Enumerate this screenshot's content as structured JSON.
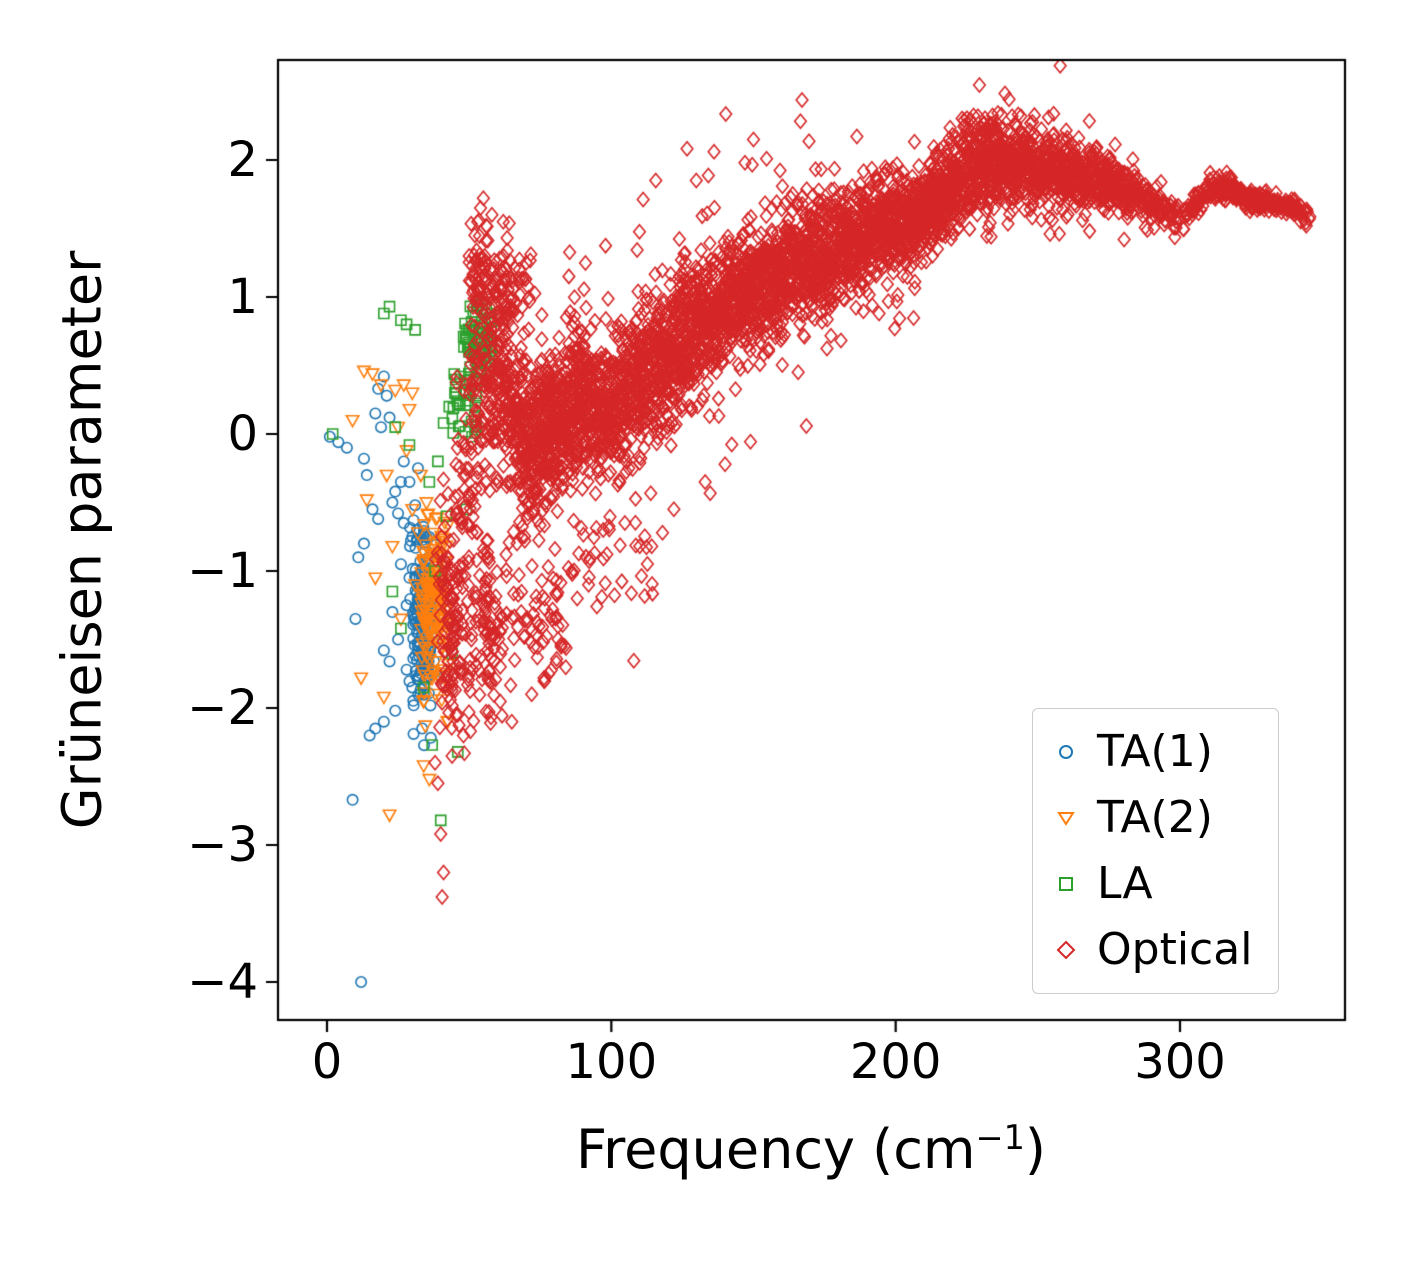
{
  "figure": {
    "background": "#ffffff",
    "axis_color": "#000000"
  },
  "chart_data": {
    "type": "scatter",
    "title": "",
    "xlabel": "Frequency (cm⁻¹)",
    "xlabel_parts": {
      "base": "Frequency (cm",
      "sup": "−1",
      "close": ")"
    },
    "ylabel": "Grüneisen parameter",
    "xlim": [
      -17,
      358
    ],
    "ylim": [
      -4.28,
      2.73
    ],
    "grid": false,
    "xticks": {
      "values": [
        0,
        100,
        200,
        300
      ],
      "labels": [
        "0",
        "100",
        "200",
        "300"
      ]
    },
    "yticks": {
      "values": [
        2,
        1,
        0,
        -1,
        -2,
        -3,
        -4
      ],
      "labels": [
        "2",
        "1",
        "0",
        "−1",
        "−2",
        "−3",
        "−4"
      ]
    },
    "legend": {
      "position": "lower right",
      "labels": [
        "TA(1)",
        "TA(2)",
        "LA",
        "Optical"
      ]
    },
    "series": [
      {
        "name": "TA(1)",
        "marker": "circle",
        "color": "#1f77b4",
        "points": [
          [
            1,
            -0.02
          ],
          [
            4,
            -0.06
          ],
          [
            7,
            -0.1
          ],
          [
            9,
            -2.67
          ],
          [
            12,
            -4.0
          ],
          [
            10,
            -1.35
          ],
          [
            11,
            -0.9
          ],
          [
            13,
            -0.8
          ],
          [
            15,
            -2.2
          ],
          [
            17,
            -2.15
          ],
          [
            18,
            0.33
          ],
          [
            21,
            0.28
          ],
          [
            16,
            -0.55
          ],
          [
            18,
            -0.62
          ],
          [
            20,
            -1.58
          ],
          [
            22,
            -1.66
          ],
          [
            23,
            -0.5
          ],
          [
            24,
            -0.42
          ],
          [
            25,
            -0.58
          ],
          [
            26,
            -0.35
          ],
          [
            27,
            -0.65
          ],
          [
            28,
            -1.25
          ],
          [
            29,
            -1.05
          ],
          [
            20,
            -2.1
          ],
          [
            24,
            -2.02
          ],
          [
            14,
            -0.3
          ],
          [
            19,
            0.05
          ],
          [
            22,
            0.12
          ],
          [
            26,
            -0.95
          ],
          [
            30,
            -0.75
          ],
          [
            31,
            -0.52
          ],
          [
            25,
            -1.5
          ],
          [
            28,
            -1.72
          ],
          [
            23,
            -1.3
          ],
          [
            20,
            0.42
          ],
          [
            17,
            0.15
          ],
          [
            13,
            -0.18
          ],
          [
            27,
            -0.2
          ],
          [
            29,
            -0.35
          ],
          [
            31,
            -1.35
          ],
          [
            30,
            -1.85
          ],
          [
            32,
            -0.25
          ]
        ],
        "clusters": [
          {
            "x": [
              29,
              38
            ],
            "y": [
              -2.35,
              -0.3
            ],
            "n": 120
          },
          {
            "x": [
              31,
              36
            ],
            "y": [
              -1.95,
              -0.85
            ],
            "n": 70
          }
        ]
      },
      {
        "name": "TA(2)",
        "marker": "triangle-down",
        "color": "#ff7f0e",
        "points": [
          [
            9,
            0.1
          ],
          [
            13,
            0.46
          ],
          [
            16,
            0.44
          ],
          [
            19,
            0.36
          ],
          [
            14,
            -0.48
          ],
          [
            17,
            -1.05
          ],
          [
            20,
            -1.92
          ],
          [
            22,
            -2.78
          ],
          [
            12,
            -1.78
          ],
          [
            24,
            0.32
          ],
          [
            27,
            0.36
          ],
          [
            29,
            0.18
          ],
          [
            28,
            -0.12
          ],
          [
            30,
            -0.55
          ],
          [
            32,
            -0.72
          ],
          [
            26,
            -1.35
          ],
          [
            31,
            -1.1
          ],
          [
            34,
            -2.42
          ],
          [
            36,
            -2.52
          ],
          [
            25,
            0.05
          ],
          [
            21,
            -0.3
          ],
          [
            23,
            -0.82
          ],
          [
            30,
            0.3
          ],
          [
            33,
            -0.3
          ],
          [
            35,
            -0.5
          ]
        ],
        "clusters": [
          {
            "x": [
              33,
              43
            ],
            "y": [
              -2.2,
              -0.5
            ],
            "n": 100
          },
          {
            "x": [
              35,
              41
            ],
            "y": [
              -1.55,
              -0.65
            ],
            "n": 60
          }
        ]
      },
      {
        "name": "LA",
        "marker": "square",
        "color": "#2ca02c",
        "points": [
          [
            2,
            0.0
          ],
          [
            20,
            0.88
          ],
          [
            22,
            0.93
          ],
          [
            26,
            0.83
          ],
          [
            28,
            0.8
          ],
          [
            31,
            0.76
          ],
          [
            24,
            0.05
          ],
          [
            29,
            -0.08
          ],
          [
            23,
            -1.15
          ],
          [
            26,
            -1.42
          ],
          [
            34,
            -1.85
          ],
          [
            37,
            -2.27
          ],
          [
            40,
            -2.82
          ],
          [
            36,
            -0.35
          ],
          [
            39,
            -0.2
          ],
          [
            41,
            0.08
          ],
          [
            43,
            0.2
          ],
          [
            45,
            0.3
          ],
          [
            47,
            0.42
          ],
          [
            49,
            -0.55
          ],
          [
            51,
            -0.02
          ],
          [
            44,
            -1.6
          ],
          [
            46,
            -2.32
          ],
          [
            38,
            -1.0
          ],
          [
            42,
            -0.6
          ]
        ],
        "clusters": [
          {
            "x": [
              48,
              58
            ],
            "y": [
              0.28,
              1.0
            ],
            "n": 80
          },
          {
            "x": [
              44,
              53
            ],
            "y": [
              -0.12,
              0.5
            ],
            "n": 30
          }
        ]
      },
      {
        "name": "Optical",
        "marker": "diamond",
        "color": "#d62728",
        "points": [
          [
            40,
            -2.92
          ],
          [
            41,
            -3.2
          ],
          [
            40.5,
            -3.38
          ],
          [
            39,
            -2.55
          ],
          [
            38,
            -2.4
          ],
          [
            150,
            2.15
          ],
          [
            147,
            1.98
          ],
          [
            88,
            -1.2
          ],
          [
            110,
            -0.82
          ],
          [
            92,
            -1.1
          ],
          [
            122,
            -0.55
          ],
          [
            133,
            -0.35
          ],
          [
            140,
            -0.22
          ],
          [
            118,
            -0.72
          ],
          [
            53,
            1.55
          ],
          [
            54,
            1.65
          ],
          [
            55,
            1.72
          ],
          [
            52,
            1.45
          ],
          [
            56,
            1.52
          ],
          [
            50,
            1.3
          ],
          [
            58,
            1.6
          ],
          [
            62,
            1.55
          ],
          [
            48,
            -2.2
          ],
          [
            46,
            -2.05
          ],
          [
            44,
            -2.35
          ],
          [
            72,
            -1.9
          ],
          [
            78,
            -1.75
          ],
          [
            65,
            -2.1
          ]
        ],
        "clusters": [
          {
            "x": [
              38,
              45
            ],
            "y": [
              -2.35,
              -0.3
            ],
            "n": 70
          },
          {
            "x": [
              42,
              62
            ],
            "y": [
              -2.25,
              -0.6
            ],
            "n": 110
          },
          {
            "x": [
              55,
              85
            ],
            "y": [
              -1.95,
              -0.75
            ],
            "n": 90
          },
          {
            "x": [
              85,
              115
            ],
            "y": [
              -1.3,
              -0.55
            ],
            "n": 30
          },
          {
            "x": [
              58,
              72
            ],
            "y": [
              0.8,
              1.5
            ],
            "n": 45
          },
          {
            "x": [
              50,
              58
            ],
            "y": [
              0.5,
              1.7
            ],
            "n": 60
          }
        ],
        "band": {
          "x": [
            45,
            55,
            62,
            70,
            80,
            90,
            97,
            105,
            115,
            125,
            135,
            145,
            155,
            165,
            175,
            185,
            195,
            205,
            215,
            225,
            235,
            245,
            255,
            265,
            275,
            285,
            295,
            303,
            310,
            318,
            326,
            334,
            342,
            346
          ],
          "yc": [
            -0.7,
            0.35,
            0.45,
            -0.05,
            0.05,
            0.25,
            0.1,
            0.3,
            0.5,
            0.7,
            0.85,
            1.0,
            1.1,
            1.25,
            1.3,
            1.4,
            1.5,
            1.55,
            1.7,
            1.9,
            2.0,
            1.95,
            1.9,
            1.9,
            1.82,
            1.75,
            1.62,
            1.6,
            1.8,
            1.78,
            1.7,
            1.68,
            1.63,
            1.6
          ],
          "ys": [
            0.8,
            0.95,
            0.7,
            0.55,
            0.5,
            0.55,
            0.5,
            0.5,
            0.5,
            0.45,
            0.45,
            0.4,
            0.4,
            0.4,
            0.4,
            0.35,
            0.35,
            0.3,
            0.3,
            0.3,
            0.28,
            0.28,
            0.26,
            0.22,
            0.18,
            0.14,
            0.1,
            0.08,
            0.07,
            0.06,
            0.06,
            0.05,
            0.05,
            0.04
          ],
          "w": [
            0.5,
            1.3,
            1.6,
            2.0,
            2.2,
            2.0,
            1.9,
            1.8,
            1.8,
            1.8,
            1.8,
            1.8,
            1.8,
            1.8,
            1.8,
            1.8,
            1.7,
            1.6,
            1.6,
            1.6,
            1.6,
            1.5,
            1.4,
            1.2,
            1.0,
            0.8,
            0.5,
            0.15,
            0.7,
            0.8,
            0.8,
            0.7,
            0.5,
            0.3
          ],
          "n": 5200
        }
      }
    ]
  }
}
